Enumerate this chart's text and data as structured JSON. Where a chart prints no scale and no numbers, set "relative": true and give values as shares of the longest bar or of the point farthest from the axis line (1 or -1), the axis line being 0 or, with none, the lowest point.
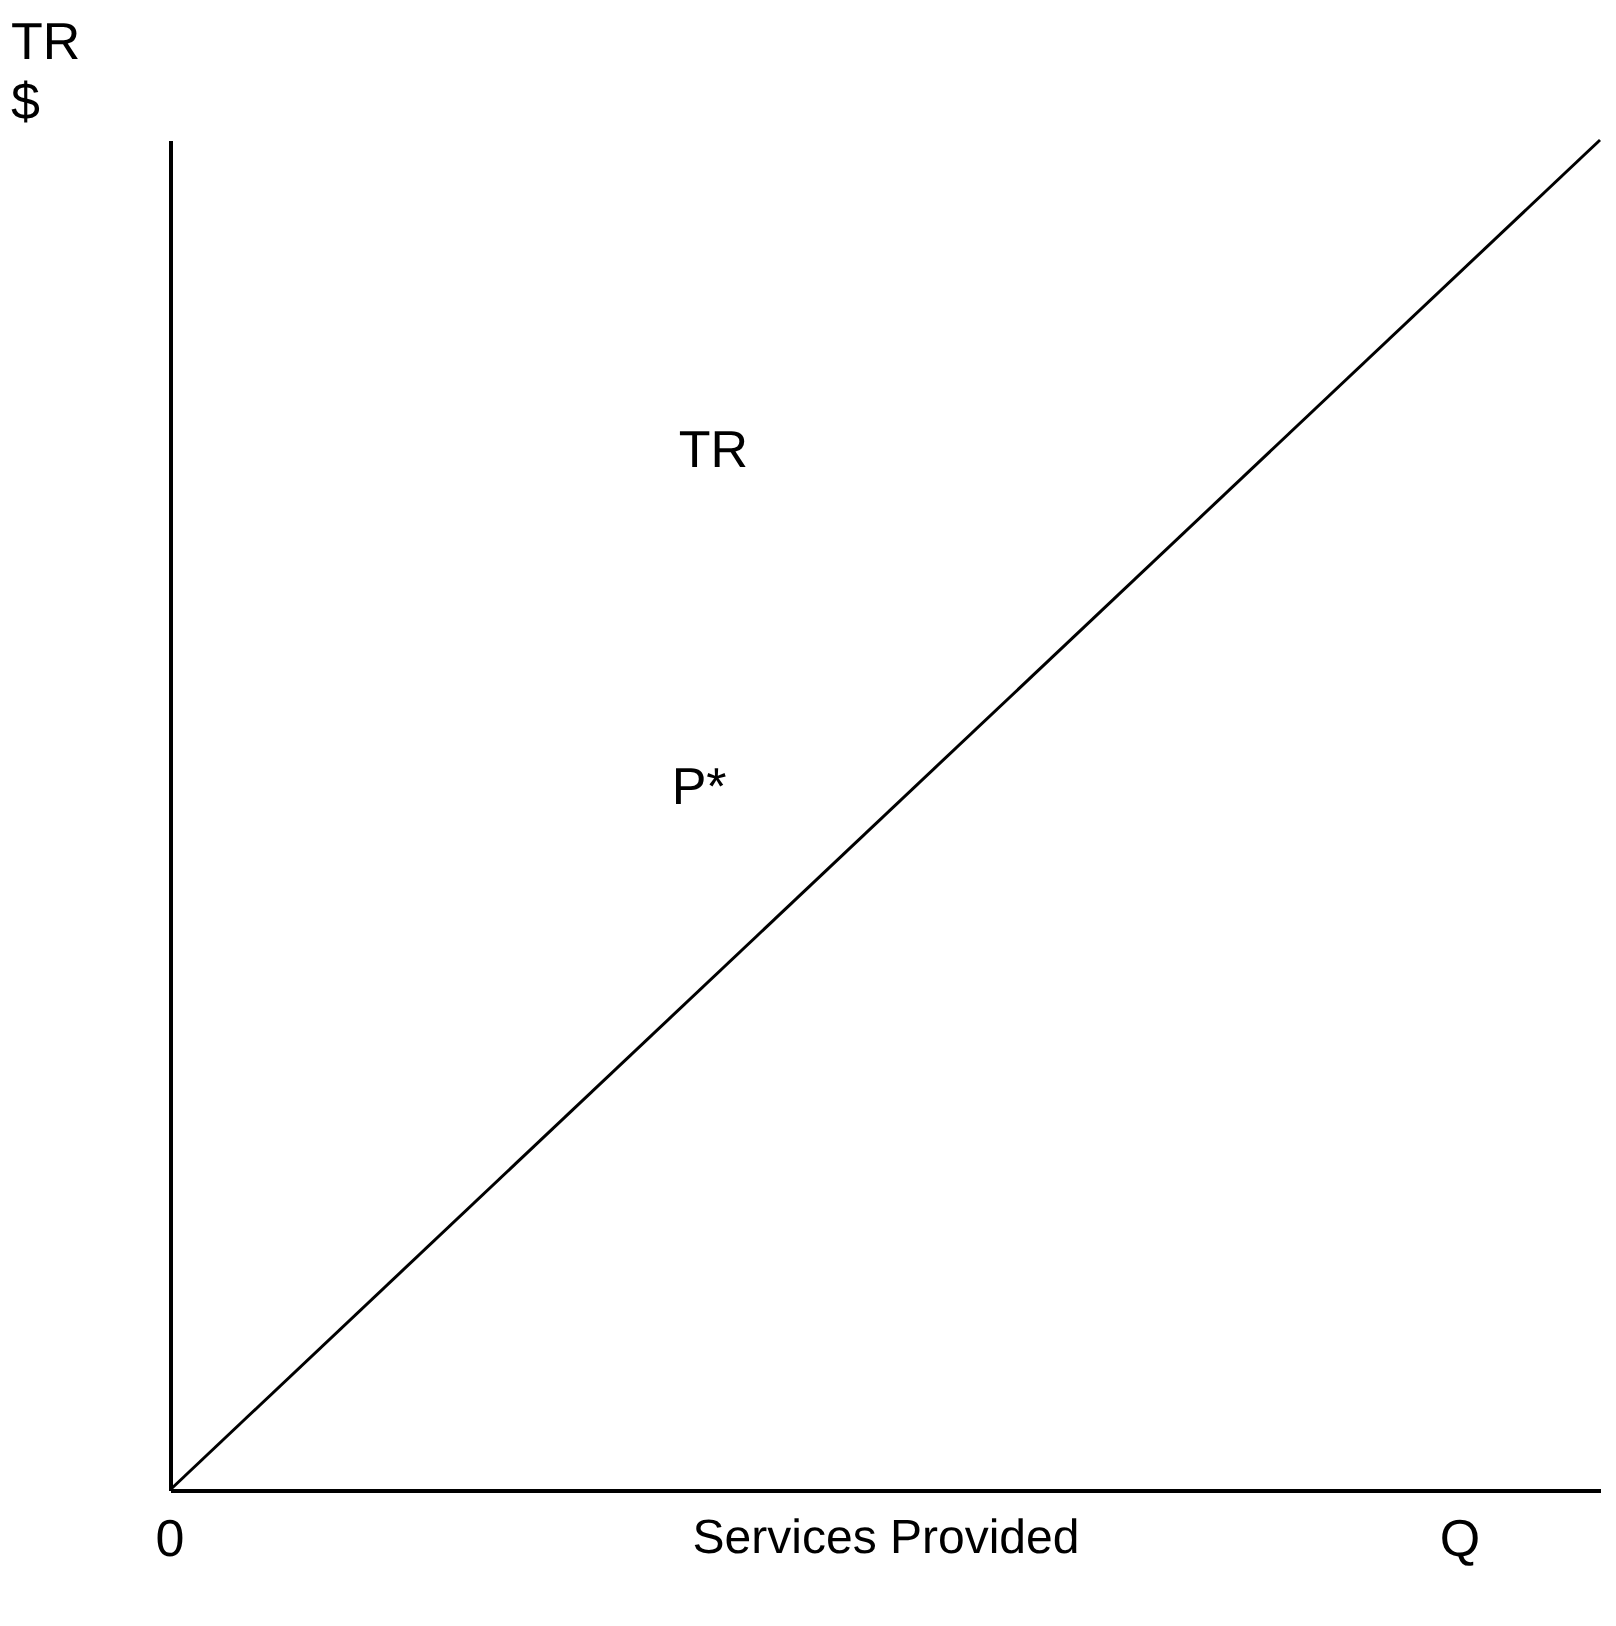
{
  "chart_data": {
    "type": "line",
    "relative": true,
    "xlabel": "Services Provided",
    "ylabel": "TR\n$",
    "categories": [
      null,
      null
    ],
    "series": [
      {
        "name": "TR",
        "color": "#000000",
        "values": [
          0,
          1
        ]
      }
    ],
    "annotations": [
      "P*",
      "0",
      "Q"
    ],
    "grid": false,
    "legend": false,
    "marker": "none",
    "line_style": "solid"
  }
}
